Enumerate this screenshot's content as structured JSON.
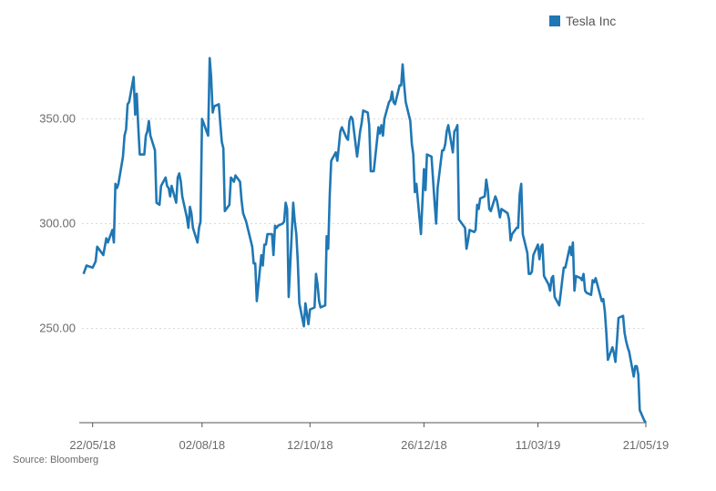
{
  "chart_data": {
    "type": "line",
    "title": "",
    "xlabel": "",
    "ylabel": "",
    "x_start": "2018-05-15",
    "x_end": "2019-05-21",
    "ylim": [
      205,
      385
    ],
    "y_ticks": [
      250,
      300,
      350
    ],
    "y_tick_labels": [
      "250.00",
      "300.00",
      "350.00"
    ],
    "x_ticks": [
      "2018-05-22",
      "2018-08-02",
      "2018-10-12",
      "2018-12-26",
      "2019-03-11",
      "2019-05-21"
    ],
    "x_tick_labels": [
      "22/05/18",
      "02/08/18",
      "12/10/18",
      "26/12/18",
      "11/03/19",
      "21/05/19"
    ],
    "grid": true,
    "legend_position": "top-right",
    "series": [
      {
        "name": "Tesla Inc",
        "color": "#1f77b4",
        "values": [
          [
            "2018-05-16",
            276
          ],
          [
            "2018-05-18",
            280
          ],
          [
            "2018-05-22",
            279
          ],
          [
            "2018-05-24",
            282
          ],
          [
            "2018-05-25",
            289
          ],
          [
            "2018-05-29",
            285
          ],
          [
            "2018-05-31",
            293
          ],
          [
            "2018-06-01",
            291
          ],
          [
            "2018-06-04",
            297
          ],
          [
            "2018-06-05",
            291
          ],
          [
            "2018-06-06",
            319
          ],
          [
            "2018-06-07",
            317
          ],
          [
            "2018-06-08",
            319
          ],
          [
            "2018-06-11",
            332
          ],
          [
            "2018-06-12",
            342
          ],
          [
            "2018-06-13",
            345
          ],
          [
            "2018-06-14",
            357
          ],
          [
            "2018-06-15",
            358
          ],
          [
            "2018-06-18",
            370
          ],
          [
            "2018-06-19",
            352
          ],
          [
            "2018-06-20",
            362
          ],
          [
            "2018-06-21",
            347
          ],
          [
            "2018-06-22",
            333
          ],
          [
            "2018-06-25",
            333
          ],
          [
            "2018-06-26",
            342
          ],
          [
            "2018-06-27",
            344
          ],
          [
            "2018-06-28",
            349
          ],
          [
            "2018-06-29",
            342
          ],
          [
            "2018-07-02",
            335
          ],
          [
            "2018-07-03",
            310
          ],
          [
            "2018-07-05",
            309
          ],
          [
            "2018-07-06",
            318
          ],
          [
            "2018-07-09",
            322
          ],
          [
            "2018-07-10",
            318
          ],
          [
            "2018-07-11",
            317
          ],
          [
            "2018-07-12",
            313
          ],
          [
            "2018-07-13",
            318
          ],
          [
            "2018-07-16",
            310
          ],
          [
            "2018-07-17",
            322
          ],
          [
            "2018-07-18",
            324
          ],
          [
            "2018-07-19",
            320
          ],
          [
            "2018-07-20",
            313
          ],
          [
            "2018-07-23",
            303
          ],
          [
            "2018-07-24",
            298
          ],
          [
            "2018-07-25",
            308
          ],
          [
            "2018-07-26",
            305
          ],
          [
            "2018-07-27",
            298
          ],
          [
            "2018-07-30",
            291
          ],
          [
            "2018-07-31",
            298
          ],
          [
            "2018-08-01",
            301
          ],
          [
            "2018-08-02",
            350
          ],
          [
            "2018-08-03",
            348
          ],
          [
            "2018-08-06",
            342
          ],
          [
            "2018-08-07",
            379
          ],
          [
            "2018-08-08",
            370
          ],
          [
            "2018-08-09",
            353
          ],
          [
            "2018-08-10",
            356
          ],
          [
            "2018-08-13",
            357
          ],
          [
            "2018-08-14",
            348
          ],
          [
            "2018-08-15",
            339
          ],
          [
            "2018-08-16",
            336
          ],
          [
            "2018-08-17",
            306
          ],
          [
            "2018-08-20",
            309
          ],
          [
            "2018-08-21",
            322
          ],
          [
            "2018-08-22",
            321
          ],
          [
            "2018-08-23",
            320
          ],
          [
            "2018-08-24",
            323
          ],
          [
            "2018-08-27",
            320
          ],
          [
            "2018-08-28",
            311
          ],
          [
            "2018-08-29",
            305
          ],
          [
            "2018-08-30",
            303
          ],
          [
            "2018-08-31",
            301
          ],
          [
            "2018-09-04",
            289
          ],
          [
            "2018-09-05",
            281
          ],
          [
            "2018-09-06",
            281
          ],
          [
            "2018-09-07",
            263
          ],
          [
            "2018-09-10",
            285
          ],
          [
            "2018-09-11",
            280
          ],
          [
            "2018-09-12",
            290
          ],
          [
            "2018-09-13",
            290
          ],
          [
            "2018-09-14",
            295
          ],
          [
            "2018-09-17",
            295
          ],
          [
            "2018-09-18",
            285
          ],
          [
            "2018-09-19",
            299
          ],
          [
            "2018-09-20",
            298
          ],
          [
            "2018-09-21",
            299
          ],
          [
            "2018-09-24",
            300
          ],
          [
            "2018-09-25",
            301
          ],
          [
            "2018-09-26",
            310
          ],
          [
            "2018-09-27",
            307
          ],
          [
            "2018-09-28",
            265
          ],
          [
            "2018-10-01",
            310
          ],
          [
            "2018-10-02",
            301
          ],
          [
            "2018-10-03",
            295
          ],
          [
            "2018-10-04",
            282
          ],
          [
            "2018-10-05",
            262
          ],
          [
            "2018-10-08",
            251
          ],
          [
            "2018-10-09",
            262
          ],
          [
            "2018-10-10",
            257
          ],
          [
            "2018-10-11",
            252
          ],
          [
            "2018-10-12",
            259
          ],
          [
            "2018-10-15",
            260
          ],
          [
            "2018-10-16",
            276
          ],
          [
            "2018-10-17",
            271
          ],
          [
            "2018-10-18",
            263
          ],
          [
            "2018-10-19",
            260
          ],
          [
            "2018-10-22",
            261
          ],
          [
            "2018-10-23",
            294
          ],
          [
            "2018-10-24",
            288
          ],
          [
            "2018-10-25",
            314
          ],
          [
            "2018-10-26",
            330
          ],
          [
            "2018-10-29",
            334
          ],
          [
            "2018-10-30",
            330
          ],
          [
            "2018-10-31",
            337
          ],
          [
            "2018-11-01",
            344
          ],
          [
            "2018-11-02",
            346
          ],
          [
            "2018-11-05",
            341
          ],
          [
            "2018-11-06",
            340
          ],
          [
            "2018-11-07",
            349
          ],
          [
            "2018-11-08",
            351
          ],
          [
            "2018-11-09",
            350
          ],
          [
            "2018-11-12",
            332
          ],
          [
            "2018-11-13",
            338
          ],
          [
            "2018-11-14",
            344
          ],
          [
            "2018-11-15",
            348
          ],
          [
            "2018-11-16",
            354
          ],
          [
            "2018-11-19",
            353
          ],
          [
            "2018-11-20",
            347
          ],
          [
            "2018-11-21",
            325
          ],
          [
            "2018-11-23",
            325
          ],
          [
            "2018-11-26",
            346
          ],
          [
            "2018-11-27",
            343
          ],
          [
            "2018-11-28",
            347
          ],
          [
            "2018-11-29",
            342
          ],
          [
            "2018-11-30",
            350
          ],
          [
            "2018-12-03",
            358
          ],
          [
            "2018-12-04",
            359
          ],
          [
            "2018-12-05",
            363
          ],
          [
            "2018-12-06",
            358
          ],
          [
            "2018-12-07",
            357
          ],
          [
            "2018-12-10",
            366
          ],
          [
            "2018-12-11",
            366
          ],
          [
            "2018-12-12",
            376
          ],
          [
            "2018-12-13",
            366
          ],
          [
            "2018-12-14",
            358
          ],
          [
            "2018-12-17",
            349
          ],
          [
            "2018-12-18",
            338
          ],
          [
            "2018-12-19",
            333
          ],
          [
            "2018-12-20",
            315
          ],
          [
            "2018-12-21",
            319
          ],
          [
            "2018-12-24",
            295
          ],
          [
            "2018-12-26",
            326
          ],
          [
            "2018-12-27",
            316
          ],
          [
            "2018-12-28",
            333
          ],
          [
            "2018-12-31",
            332
          ],
          [
            "2019-01-02",
            310
          ],
          [
            "2019-01-03",
            300
          ],
          [
            "2019-01-04",
            317
          ],
          [
            "2019-01-07",
            335
          ],
          [
            "2019-01-08",
            335
          ],
          [
            "2019-01-09",
            338
          ],
          [
            "2019-01-10",
            344
          ],
          [
            "2019-01-11",
            347
          ],
          [
            "2019-01-14",
            334
          ],
          [
            "2019-01-15",
            344
          ],
          [
            "2019-01-16",
            345
          ],
          [
            "2019-01-17",
            347
          ],
          [
            "2019-01-18",
            302
          ],
          [
            "2019-01-22",
            298
          ],
          [
            "2019-01-23",
            288
          ],
          [
            "2019-01-24",
            292
          ],
          [
            "2019-01-25",
            297
          ],
          [
            "2019-01-28",
            296
          ],
          [
            "2019-01-29",
            297
          ],
          [
            "2019-01-30",
            309
          ],
          [
            "2019-01-31",
            307
          ],
          [
            "2019-02-01",
            312
          ],
          [
            "2019-02-04",
            313
          ],
          [
            "2019-02-05",
            321
          ],
          [
            "2019-02-06",
            316
          ],
          [
            "2019-02-07",
            307
          ],
          [
            "2019-02-08",
            306
          ],
          [
            "2019-02-11",
            313
          ],
          [
            "2019-02-12",
            311
          ],
          [
            "2019-02-13",
            307
          ],
          [
            "2019-02-14",
            303
          ],
          [
            "2019-02-15",
            307
          ],
          [
            "2019-02-19",
            305
          ],
          [
            "2019-02-20",
            302
          ],
          [
            "2019-02-21",
            292
          ],
          [
            "2019-02-22",
            295
          ],
          [
            "2019-02-25",
            298
          ],
          [
            "2019-02-26",
            298
          ],
          [
            "2019-02-27",
            314
          ],
          [
            "2019-02-28",
            319
          ],
          [
            "2019-03-01",
            295
          ],
          [
            "2019-03-04",
            286
          ],
          [
            "2019-03-05",
            276
          ],
          [
            "2019-03-06",
            276
          ],
          [
            "2019-03-07",
            277
          ],
          [
            "2019-03-08",
            285
          ],
          [
            "2019-03-11",
            290
          ],
          [
            "2019-03-12",
            283
          ],
          [
            "2019-03-13",
            289
          ],
          [
            "2019-03-14",
            290
          ],
          [
            "2019-03-15",
            275
          ],
          [
            "2019-03-18",
            271
          ],
          [
            "2019-03-19",
            268
          ],
          [
            "2019-03-20",
            274
          ],
          [
            "2019-03-21",
            275
          ],
          [
            "2019-03-22",
            265
          ],
          [
            "2019-03-25",
            261
          ],
          [
            "2019-03-26",
            267
          ],
          [
            "2019-03-27",
            273
          ],
          [
            "2019-03-28",
            279
          ],
          [
            "2019-03-29",
            279
          ],
          [
            "2019-04-01",
            289
          ],
          [
            "2019-04-02",
            285
          ],
          [
            "2019-04-03",
            291
          ],
          [
            "2019-04-04",
            268
          ],
          [
            "2019-04-05",
            275
          ],
          [
            "2019-04-08",
            274
          ],
          [
            "2019-04-09",
            273
          ],
          [
            "2019-04-10",
            276
          ],
          [
            "2019-04-11",
            268
          ],
          [
            "2019-04-12",
            267
          ],
          [
            "2019-04-15",
            266
          ],
          [
            "2019-04-16",
            273
          ],
          [
            "2019-04-17",
            272
          ],
          [
            "2019-04-18",
            274
          ],
          [
            "2019-04-22",
            263
          ],
          [
            "2019-04-23",
            264
          ],
          [
            "2019-04-24",
            258
          ],
          [
            "2019-04-25",
            248
          ],
          [
            "2019-04-26",
            235
          ],
          [
            "2019-04-29",
            241
          ],
          [
            "2019-04-30",
            238
          ],
          [
            "2019-05-01",
            234
          ],
          [
            "2019-05-02",
            244
          ],
          [
            "2019-05-03",
            255
          ],
          [
            "2019-05-06",
            256
          ],
          [
            "2019-05-07",
            248
          ],
          [
            "2019-05-08",
            244
          ],
          [
            "2019-05-09",
            241
          ],
          [
            "2019-05-10",
            239
          ],
          [
            "2019-05-13",
            227
          ],
          [
            "2019-05-14",
            232
          ],
          [
            "2019-05-15",
            232
          ],
          [
            "2019-05-16",
            228
          ],
          [
            "2019-05-17",
            211
          ],
          [
            "2019-05-20",
            206
          ],
          [
            "2019-05-21",
            205
          ]
        ]
      }
    ]
  },
  "legend_label": "Tesla Inc",
  "source": "Source: Bloomberg"
}
